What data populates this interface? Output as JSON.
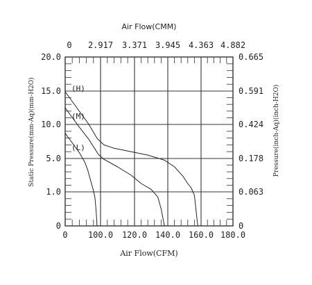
{
  "chart_data": {
    "type": "line",
    "title": "",
    "top_axis": {
      "label": "Air Flow(CMM)",
      "tick_labels": [
        "0",
        "2.917",
        "3.371",
        "3.945",
        "4.363",
        "4.882"
      ]
    },
    "x_axis": {
      "label": "Air Flow(CFM)",
      "tick_labels": [
        "0",
        "100.0",
        "120.0",
        "140.0",
        "160.0",
        "180.0"
      ]
    },
    "left_axis": {
      "label": "Static Pressure(mm-Aq)(mm-H2O)",
      "tick_labels": [
        "0",
        "1.0",
        "5.0",
        "10.0",
        "15.0",
        "20.0"
      ]
    },
    "right_axis": {
      "label": "Pressure(inch-Aq)(inch-H2O)",
      "tick_labels": [
        "0",
        "0.063",
        "0.178",
        "0.424",
        "0.591",
        "0.665"
      ]
    },
    "grid": true,
    "series": [
      {
        "name": "(H)",
        "x": [
          0,
          33,
          67,
          91,
          102,
          108,
          118,
          128,
          138,
          144,
          149,
          152,
          154,
          156,
          157,
          158
        ],
        "y": [
          14.9,
          12.5,
          10.0,
          7.9,
          7.0,
          6.5,
          6.0,
          5.5,
          4.8,
          4.0,
          2.9,
          2.0,
          1.5,
          0.9,
          0.45,
          0.0
        ]
      },
      {
        "name": "(M)",
        "x": [
          0,
          40,
          67,
          83,
          94,
          102,
          110,
          118,
          124,
          130,
          134,
          136,
          137,
          138
        ],
        "y": [
          12.5,
          9.6,
          7.8,
          6.5,
          5.6,
          4.9,
          4.0,
          3.0,
          2.0,
          1.3,
          0.85,
          0.5,
          0.25,
          0.0
        ]
      },
      {
        "name": "(L)",
        "x": [
          0,
          17,
          42,
          56,
          64,
          73,
          79,
          84,
          87,
          89,
          90
        ],
        "y": [
          8.7,
          7.5,
          5.7,
          4.5,
          3.6,
          2.2,
          1.3,
          0.85,
          0.5,
          0.2,
          0.0
        ]
      }
    ]
  }
}
